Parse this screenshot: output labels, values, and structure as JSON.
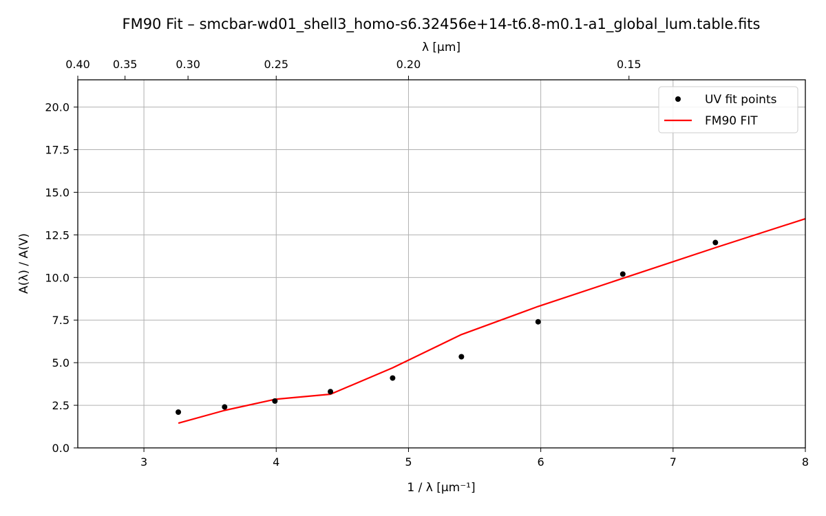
{
  "chart_data": {
    "type": "line",
    "title": "FM90 Fit – smcbar-wd01_shell3_homo-s6.32456e+14-t6.8-m0.1-a1_global_lum.table.fits",
    "xlabel": "1 / λ [μm⁻¹]",
    "ylabel": "A(λ) / A(V)",
    "top_xlabel": "λ [μm]",
    "xlim": [
      2.5,
      8.0
    ],
    "ylim": [
      0.0,
      21.6
    ],
    "xticks": [
      3,
      4,
      5,
      6,
      7,
      8
    ],
    "xtick_labels": [
      "3",
      "4",
      "5",
      "6",
      "7",
      "8"
    ],
    "yticks": [
      0.0,
      2.5,
      5.0,
      7.5,
      10.0,
      12.5,
      15.0,
      17.5,
      20.0
    ],
    "ytick_labels": [
      "0.0",
      "2.5",
      "5.0",
      "7.5",
      "10.0",
      "12.5",
      "15.0",
      "17.5",
      "20.0"
    ],
    "top_ticks_lambda": [
      0.4,
      0.35,
      0.3,
      0.25,
      0.2,
      0.15
    ],
    "top_tick_labels": [
      "0.40",
      "0.35",
      "0.30",
      "0.25",
      "0.20",
      "0.15"
    ],
    "grid": true,
    "legend_position": "top-right",
    "series": [
      {
        "name": "UV fit points",
        "type": "scatter",
        "color": "#000000",
        "x": [
          3.26,
          3.61,
          3.99,
          4.41,
          4.88,
          5.4,
          5.98,
          6.62,
          7.32
        ],
        "y": [
          2.1,
          2.4,
          2.75,
          3.3,
          4.1,
          5.35,
          7.4,
          10.2,
          12.05
        ]
      },
      {
        "name": "FM90 FIT",
        "type": "line",
        "color": "#ff0000",
        "x": [
          3.26,
          3.61,
          3.99,
          4.41,
          4.88,
          5.4,
          5.98,
          6.62,
          7.32,
          8.0
        ],
        "y": [
          1.45,
          2.2,
          2.85,
          3.15,
          4.7,
          6.65,
          8.3,
          9.95,
          11.75,
          13.45
        ]
      }
    ]
  }
}
